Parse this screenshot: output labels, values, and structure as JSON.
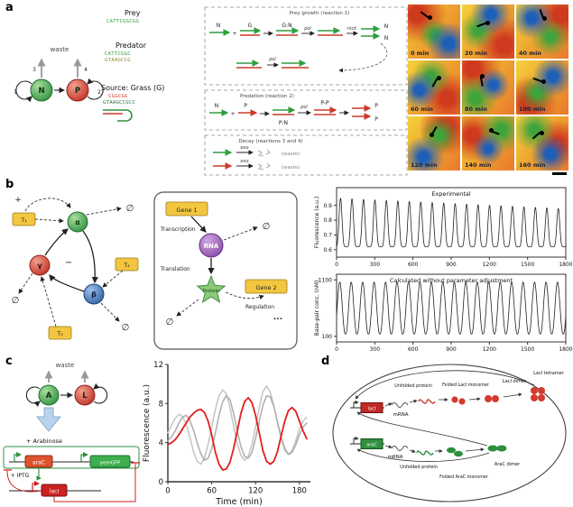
{
  "panel_a": {
    "label": "a",
    "motif": {
      "waste": "waste",
      "n": "N",
      "p": "P",
      "n1": "1",
      "n2": "2",
      "n3": "3",
      "n4": "4"
    },
    "sequences": {
      "prey_title": "Prey",
      "prey_seq": "CATTCGGCGG",
      "predator_title": "Predator",
      "predator_seq1": "CATTCGGC",
      "predator_seq2": "GTAAGCCG",
      "source_title": "Source: Grass (G)",
      "grass_seq1": "CGGCGG",
      "grass_seq2": "GTAAGCCGCC"
    },
    "reactions": {
      "r1": "Prey growth (reaction 1)",
      "r2": "Predation (reaction 2)",
      "r3": "Decay (reactions 3 and 4)",
      "n": "N",
      "p": "P",
      "g": "G",
      "plus": "+",
      "gn": "G:N",
      "pn": "P:N",
      "pp": "P-P",
      "pol": "pol",
      "nick": "nick",
      "exo": "exo",
      "waste": "(waste)"
    },
    "micrographs": [
      "0 min",
      "20 min",
      "40 min",
      "60 min",
      "80 min",
      "100 min",
      "120 min",
      "140 min",
      "160 min"
    ]
  },
  "panel_b": {
    "label": "b",
    "network": {
      "t1": "T₁",
      "t2": "T₂",
      "t3": "T₃",
      "alpha": "α",
      "beta": "β",
      "gamma": "γ",
      "empty": "∅",
      "plus": "+",
      "minus": "−"
    },
    "pathway": {
      "gene1": "Gene 1",
      "gene2": "Gene 2",
      "transcription": "Transcription",
      "translation": "Translation",
      "regulation": "Regulation",
      "rna": "RNA",
      "protein": "Protein",
      "empty": "∅",
      "dots": "..."
    }
  },
  "panel_c": {
    "label": "c",
    "motif": {
      "waste": "waste",
      "a": "A",
      "l": "L"
    },
    "circuit": {
      "arabinose": "+ Arabinose",
      "iptg": "+ IPTG",
      "arac": "araC",
      "gfp": "yemGFP",
      "laci": "lacI"
    }
  },
  "panel_d": {
    "label": "d",
    "items": {
      "gene_top": "lacI",
      "gene_bottom": "araC",
      "mrna1": "mRNA",
      "mrna2": "mRNA",
      "unfolded1": "Unfolded protein",
      "unfolded2": "Unfolded protein",
      "laci_monomer": "Folded LacI monomer",
      "laci_dimer": "LacI dimer",
      "laci_tetramer": "LacI tetramer",
      "arac_monomer": "Folded AraC monomer",
      "arac_dimer": "AraC dimer"
    }
  },
  "colors": {
    "prey_green": "#2f9e3f",
    "predator_red": "#cc3b2a",
    "gene_yellow": "#f3c63f",
    "rna_purple": "#8a4aa8",
    "beta_blue": "#2f5f9f",
    "trace_red": "#e21f1f",
    "trace_gray": "#bcbcbc"
  },
  "chart_data": [
    {
      "id": "experimental",
      "type": "line",
      "title": "Experimental",
      "ylabel": "Fluorescence (a.u.)",
      "xlim": [
        0,
        1800
      ],
      "ylim": [
        0.55,
        1.02
      ],
      "xticks": [
        0,
        300,
        600,
        900,
        1200,
        1500,
        1800
      ],
      "yticks": [
        0.6,
        0.7,
        0.8,
        0.9
      ],
      "frame": "box",
      "grid": false,
      "color": "#222222",
      "waveform": {
        "period": 90,
        "min": 0.62,
        "max": 0.95,
        "shape": "full",
        "sharpness": 3,
        "amp_decay_to": 0.78,
        "phase": -0.6
      }
    },
    {
      "id": "calculated",
      "type": "line",
      "title": "Calculated without parameter adjustment",
      "ylabel": "Base-pair conc. (nM)",
      "xlim": [
        0,
        1800
      ],
      "ylim": [
        0,
        1200
      ],
      "xticks": [
        0,
        300,
        600,
        900,
        1200,
        1500,
        1800
      ],
      "yticks": [
        100,
        1100
      ],
      "frame": "box",
      "grid": false,
      "color": "#222222",
      "waveform": {
        "period": 90,
        "min": 140,
        "max": 1060,
        "shape": "full",
        "sharpness": 1.2,
        "amp_decay_to": 1,
        "phase": -0.17
      }
    },
    {
      "id": "dual-feedback-oscillator",
      "type": "line",
      "xlabel": "Time (min)",
      "ylabel": "Fluorescence (a.u.)",
      "xlim": [
        0,
        195
      ],
      "ylim": [
        0,
        12
      ],
      "xticks": [
        0,
        60,
        120,
        180
      ],
      "yticks": [
        0,
        4,
        8,
        12
      ],
      "frame": "open",
      "grid": false,
      "series": [
        {
          "name": "replicate gray 1",
          "color": "#c4c4c4",
          "width": 1.5,
          "points": [
            [
              0,
              5.0
            ],
            [
              5,
              5.8
            ],
            [
              10,
              6.5
            ],
            [
              15,
              6.9
            ],
            [
              20,
              6.7
            ],
            [
              25,
              5.9
            ],
            [
              30,
              4.6
            ],
            [
              35,
              3.1
            ],
            [
              40,
              2.1
            ],
            [
              45,
              1.8
            ],
            [
              50,
              2.4
            ],
            [
              55,
              3.8
            ],
            [
              60,
              5.6
            ],
            [
              65,
              7.4
            ],
            [
              70,
              8.8
            ],
            [
              75,
              9.4
            ],
            [
              80,
              9.0
            ],
            [
              85,
              7.6
            ],
            [
              90,
              5.7
            ],
            [
              95,
              3.9
            ],
            [
              100,
              2.7
            ],
            [
              105,
              2.2
            ],
            [
              110,
              2.6
            ],
            [
              115,
              3.8
            ],
            [
              120,
              5.6
            ],
            [
              125,
              7.6
            ],
            [
              130,
              9.2
            ],
            [
              135,
              9.8
            ],
            [
              140,
              9.2
            ],
            [
              145,
              7.8
            ],
            [
              150,
              6.0
            ],
            [
              155,
              4.4
            ],
            [
              160,
              3.2
            ],
            [
              165,
              2.8
            ],
            [
              170,
              3.2
            ],
            [
              175,
              4.2
            ],
            [
              180,
              5.4
            ],
            [
              185,
              6.2
            ],
            [
              190,
              6.6
            ]
          ]
        },
        {
          "name": "replicate gray 2",
          "color": "#adadad",
          "width": 1.5,
          "points": [
            [
              0,
              4.2
            ],
            [
              5,
              4.6
            ],
            [
              10,
              5.2
            ],
            [
              15,
              6.0
            ],
            [
              20,
              6.6
            ],
            [
              25,
              6.8
            ],
            [
              30,
              6.3
            ],
            [
              35,
              5.3
            ],
            [
              40,
              4.0
            ],
            [
              45,
              2.9
            ],
            [
              50,
              2.2
            ],
            [
              55,
              2.4
            ],
            [
              60,
              3.4
            ],
            [
              65,
              5.0
            ],
            [
              70,
              6.8
            ],
            [
              75,
              8.2
            ],
            [
              80,
              8.8
            ],
            [
              85,
              8.4
            ],
            [
              90,
              7.0
            ],
            [
              95,
              5.2
            ],
            [
              100,
              3.6
            ],
            [
              105,
              2.6
            ],
            [
              110,
              2.4
            ],
            [
              115,
              3.0
            ],
            [
              120,
              4.4
            ],
            [
              125,
              6.2
            ],
            [
              130,
              7.8
            ],
            [
              135,
              8.8
            ],
            [
              140,
              8.7
            ],
            [
              145,
              7.7
            ],
            [
              150,
              6.1
            ],
            [
              155,
              4.6
            ],
            [
              160,
              3.4
            ],
            [
              165,
              2.8
            ],
            [
              170,
              3.0
            ],
            [
              175,
              3.8
            ],
            [
              180,
              4.8
            ],
            [
              185,
              5.6
            ],
            [
              190,
              6.0
            ]
          ]
        },
        {
          "name": "red trace",
          "color": "#e21f1f",
          "width": 1.8,
          "points": [
            [
              0,
              3.8
            ],
            [
              5,
              4.0
            ],
            [
              10,
              4.3
            ],
            [
              15,
              4.8
            ],
            [
              20,
              5.4
            ],
            [
              25,
              6.0
            ],
            [
              30,
              6.6
            ],
            [
              35,
              7.0
            ],
            [
              40,
              7.3
            ],
            [
              45,
              7.4
            ],
            [
              50,
              7.1
            ],
            [
              55,
              6.2
            ],
            [
              60,
              4.8
            ],
            [
              65,
              3.0
            ],
            [
              70,
              1.8
            ],
            [
              75,
              1.2
            ],
            [
              80,
              1.3
            ],
            [
              85,
              2.0
            ],
            [
              90,
              3.4
            ],
            [
              95,
              5.2
            ],
            [
              100,
              7.0
            ],
            [
              105,
              8.2
            ],
            [
              110,
              8.6
            ],
            [
              115,
              8.1
            ],
            [
              120,
              6.8
            ],
            [
              125,
              5.0
            ],
            [
              130,
              3.2
            ],
            [
              135,
              2.1
            ],
            [
              140,
              1.8
            ],
            [
              145,
              2.1
            ],
            [
              150,
              3.1
            ],
            [
              155,
              4.7
            ],
            [
              160,
              6.2
            ],
            [
              165,
              7.3
            ],
            [
              170,
              7.6
            ],
            [
              175,
              7.2
            ],
            [
              180,
              6.2
            ],
            [
              185,
              5.2
            ],
            [
              190,
              4.4
            ]
          ]
        }
      ]
    }
  ]
}
